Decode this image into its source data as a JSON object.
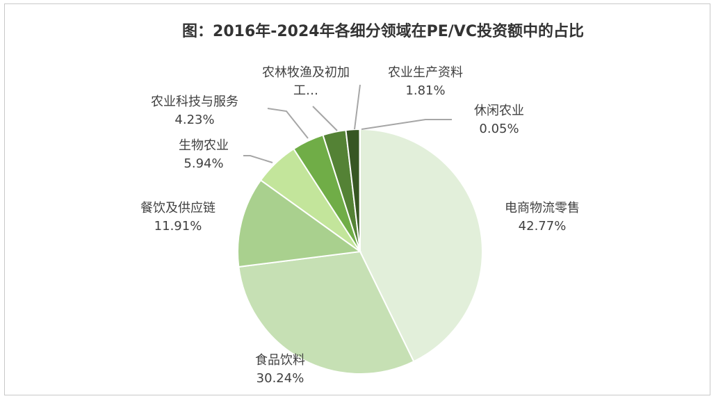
{
  "chart_data": {
    "type": "pie",
    "title": "图：2016年-2024年各细分领域在PE/VC投资额中的占比",
    "slices": [
      {
        "name": "电商物流零售",
        "value": 42.77,
        "label": "42.77%",
        "color": "#e2efda"
      },
      {
        "name": "食品饮料",
        "value": 30.24,
        "label": "30.24%",
        "color": "#c6e0b4"
      },
      {
        "name": "餐饮及供应链",
        "value": 11.91,
        "label": "11.91%",
        "color": "#a9d08e"
      },
      {
        "name": "生物农业",
        "value": 5.94,
        "label": "5.94%",
        "color": "#c3e59b"
      },
      {
        "name": "农业科技与服务",
        "value": 4.23,
        "label": "4.23%",
        "color": "#70ad47"
      },
      {
        "name": "农林牧渔及初加工…",
        "value": 3.05,
        "label": "",
        "color": "#548235"
      },
      {
        "name": "农业生产资料",
        "value": 1.81,
        "label": "1.81%",
        "color": "#375623"
      },
      {
        "name": "休闲农业",
        "value": 0.05,
        "label": "0.05%",
        "color": "#1e3a14"
      }
    ],
    "legend": "none",
    "data_labels": "outside-with-leader-lines"
  }
}
